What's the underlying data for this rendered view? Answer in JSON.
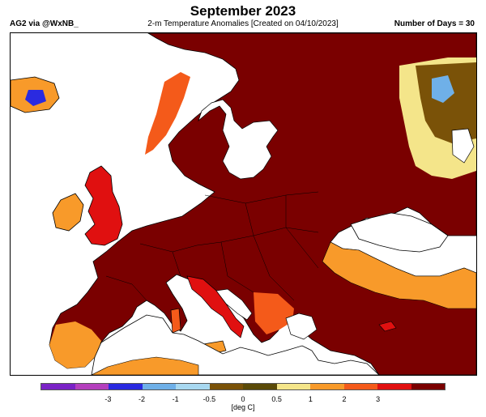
{
  "header": {
    "title": "September 2023",
    "subtitle": "2-m Temperature Anomalies [Created on 04/10/2023]",
    "source": "AG2 via @WxNB_",
    "days": "Number of Days = 30"
  },
  "map": {
    "region": "Europe",
    "land_default_color": "#7a0000",
    "sea_color": "#ffffff"
  },
  "colorbar": {
    "colors": [
      "#7a22c6",
      "#b43fbd",
      "#2a2ae0",
      "#6fb0e8",
      "#a8d8f0",
      "#7a5208",
      "#5a4a08",
      "#f4e58a",
      "#f89a2a",
      "#f45a1a",
      "#e01010",
      "#7a0000"
    ],
    "ticks": [
      "-3",
      "-2",
      "-1",
      "-0.5",
      "0",
      "0.5",
      "1",
      "2",
      "3"
    ],
    "unit": "[deg C]"
  }
}
